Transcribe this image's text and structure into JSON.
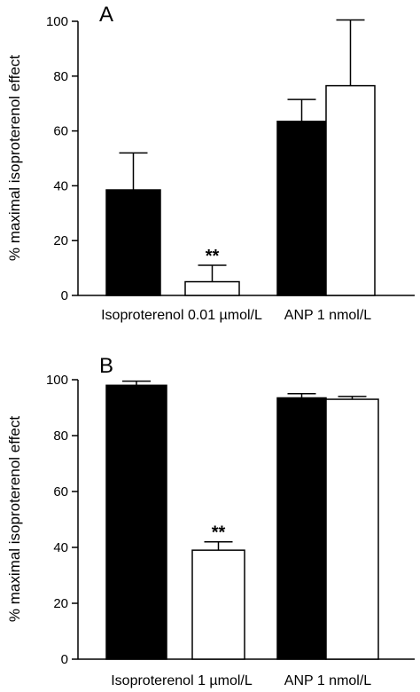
{
  "chart_data": [
    {
      "type": "bar",
      "panel_label": "A",
      "ylabel": "% maximal isoproterenol effect",
      "ylim": [
        0,
        100
      ],
      "yticks": [
        0,
        20,
        40,
        60,
        80,
        100
      ],
      "groups": [
        "Isoproterenol 0.01 µmol/L",
        "ANP 1 nmol/L"
      ],
      "bars": [
        {
          "group": 0,
          "fill": "#000000",
          "value": 38.5,
          "error": 13.5,
          "annotation": ""
        },
        {
          "group": 0,
          "fill": "#ffffff",
          "value": 5,
          "error": 6,
          "annotation": "**"
        },
        {
          "group": 1,
          "fill": "#000000",
          "value": 63.5,
          "error": 8,
          "annotation": ""
        },
        {
          "group": 1,
          "fill": "#ffffff",
          "value": 76.5,
          "error": 24,
          "annotation": ""
        }
      ]
    },
    {
      "type": "bar",
      "panel_label": "B",
      "ylabel": "% maximal isoproterenol effect",
      "ylim": [
        0,
        100
      ],
      "yticks": [
        0,
        20,
        40,
        60,
        80,
        100
      ],
      "groups": [
        "Isoproterenol 1 µmol/L",
        "ANP 1 nmol/L"
      ],
      "bars": [
        {
          "group": 0,
          "fill": "#000000",
          "value": 98,
          "error": 1.5,
          "annotation": ""
        },
        {
          "group": 0,
          "fill": "#ffffff",
          "value": 39,
          "error": 3,
          "annotation": "**"
        },
        {
          "group": 1,
          "fill": "#000000",
          "value": 93.5,
          "error": 1.5,
          "annotation": ""
        },
        {
          "group": 1,
          "fill": "#ffffff",
          "value": 93,
          "error": 1,
          "annotation": ""
        }
      ]
    }
  ]
}
